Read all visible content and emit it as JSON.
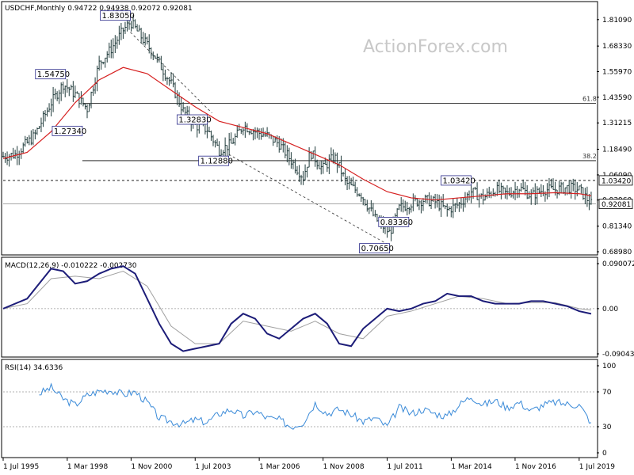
{
  "chart_title": "USDCHF,Monthly  0.94722 0.94938 0.92072 0.92081",
  "watermark": "ActionForex.com",
  "chart_data": [
    {
      "type": "ohlc",
      "panel": "price",
      "symbol": "USDCHF",
      "timeframe": "Monthly",
      "last_ohlc": {
        "open": 0.94722,
        "high": 0.94938,
        "low": 0.92072,
        "close": 0.92081
      },
      "ylim": [
        0.6898,
        1.8598
      ],
      "y_ticks": [
        "1.81090",
        "1.68330",
        "1.55970",
        "1.43590",
        "1.31215",
        "1.18490",
        "1.06090",
        "0.93960",
        "0.81340",
        "0.68980"
      ],
      "x_ticks": [
        "1 Jul 1995",
        "1 Mar 1998",
        "1 Nov 2000",
        "1 Jul 2003",
        "1 Mar 2006",
        "1 Nov 2008",
        "1 Jul 2011",
        "1 Mar 2014",
        "1 Nov 2016",
        "1 Jul 2019"
      ],
      "x_range": [
        1995.5,
        2020.2
      ],
      "swing_points": [
        {
          "label": "1.83050",
          "x": 2000.8,
          "y": 1.8305
        },
        {
          "label": "1.54750",
          "x": 1998.1,
          "y": 1.5475
        },
        {
          "label": "1.27340",
          "x": 1998.8,
          "y": 1.2734
        },
        {
          "label": "1.32830",
          "x": 2004.0,
          "y": 1.3283
        },
        {
          "label": "1.12880",
          "x": 2004.9,
          "y": 1.1288
        },
        {
          "label": "0.70650",
          "x": 2011.6,
          "y": 0.7065
        },
        {
          "label": "0.83360",
          "x": 2012.4,
          "y": 0.8336
        },
        {
          "label": "1.03420",
          "x": 2015.0,
          "y": 1.0342
        }
      ],
      "fib_levels": [
        {
          "label": "61.8",
          "value": 1.4063
        },
        {
          "label": "38.2",
          "value": 1.1297
        }
      ],
      "price_tags": [
        {
          "label": "1.03420",
          "value": 1.0342,
          "color": "#000000"
        },
        {
          "label": "0.92081",
          "value": 0.92081,
          "color": "#000000"
        }
      ],
      "moving_average": [
        [
          1995.5,
          1.14
        ],
        [
          1996.5,
          1.17
        ],
        [
          1997.5,
          1.27
        ],
        [
          1998.5,
          1.41
        ],
        [
          1999.5,
          1.52
        ],
        [
          2000.5,
          1.58
        ],
        [
          2001.5,
          1.55
        ],
        [
          2002.5,
          1.47
        ],
        [
          2003.5,
          1.39
        ],
        [
          2004.5,
          1.32
        ],
        [
          2005.5,
          1.29
        ],
        [
          2006.5,
          1.26
        ],
        [
          2007.5,
          1.21
        ],
        [
          2008.5,
          1.16
        ],
        [
          2009.5,
          1.11
        ],
        [
          2010.5,
          1.04
        ],
        [
          2011.5,
          0.98
        ],
        [
          2012.5,
          0.95
        ],
        [
          2013.5,
          0.94
        ],
        [
          2014.5,
          0.95
        ],
        [
          2015.5,
          0.96
        ],
        [
          2016.5,
          0.97
        ],
        [
          2017.5,
          0.97
        ],
        [
          2018.5,
          0.975
        ],
        [
          2019.5,
          0.97
        ],
        [
          2020.0,
          0.96
        ]
      ],
      "price_path": [
        [
          1995.5,
          1.15
        ],
        [
          1996.0,
          1.16
        ],
        [
          1996.8,
          1.25
        ],
        [
          1997.5,
          1.41
        ],
        [
          1998.0,
          1.5
        ],
        [
          1998.5,
          1.45
        ],
        [
          1999.0,
          1.38
        ],
        [
          1999.5,
          1.6
        ],
        [
          2000.0,
          1.67
        ],
        [
          2000.5,
          1.76
        ],
        [
          2000.8,
          1.8
        ],
        [
          2001.3,
          1.72
        ],
        [
          2001.8,
          1.64
        ],
        [
          2002.5,
          1.5
        ],
        [
          2003.0,
          1.37
        ],
        [
          2003.5,
          1.3
        ],
        [
          2004.0,
          1.28
        ],
        [
          2004.5,
          1.18
        ],
        [
          2005.0,
          1.21
        ],
        [
          2005.5,
          1.3
        ],
        [
          2006.0,
          1.27
        ],
        [
          2006.5,
          1.25
        ],
        [
          2007.0,
          1.21
        ],
        [
          2007.5,
          1.13
        ],
        [
          2008.0,
          1.05
        ],
        [
          2008.3,
          1.17
        ],
        [
          2008.8,
          1.09
        ],
        [
          2009.3,
          1.15
        ],
        [
          2009.8,
          1.02
        ],
        [
          2010.4,
          0.97
        ],
        [
          2011.0,
          0.85
        ],
        [
          2011.6,
          0.78
        ],
        [
          2012.0,
          0.9
        ],
        [
          2012.6,
          0.93
        ],
        [
          2013.0,
          0.94
        ],
        [
          2013.5,
          0.93
        ],
        [
          2014.0,
          0.89
        ],
        [
          2014.5,
          0.92
        ],
        [
          2015.0,
          0.98
        ],
        [
          2015.5,
          0.95
        ],
        [
          2016.0,
          0.99
        ],
        [
          2016.5,
          0.97
        ],
        [
          2017.0,
          1.0
        ],
        [
          2017.5,
          0.96
        ],
        [
          2018.0,
          0.99
        ],
        [
          2018.5,
          0.99
        ],
        [
          2019.0,
          1.0
        ],
        [
          2019.5,
          0.99
        ],
        [
          2020.0,
          0.9208
        ]
      ]
    },
    {
      "type": "line",
      "panel": "macd",
      "name": "MACD(12,26,9) -0.010222 -0.002730",
      "ylim": [
        -0.090435,
        0.090072
      ],
      "y_ticks": [
        "0.090072",
        "0.00",
        "-0.090435"
      ],
      "macd": [
        [
          1995.5,
          0.0
        ],
        [
          1996.5,
          0.02
        ],
        [
          1997.0,
          0.05
        ],
        [
          1997.5,
          0.08
        ],
        [
          1998.0,
          0.075
        ],
        [
          1998.5,
          0.05
        ],
        [
          1999.0,
          0.055
        ],
        [
          1999.5,
          0.07
        ],
        [
          2000.0,
          0.08
        ],
        [
          2000.5,
          0.085
        ],
        [
          2001.0,
          0.07
        ],
        [
          2001.5,
          0.02
        ],
        [
          2002.0,
          -0.03
        ],
        [
          2002.5,
          -0.07
        ],
        [
          2003.0,
          -0.085
        ],
        [
          2003.5,
          -0.08
        ],
        [
          2004.0,
          -0.075
        ],
        [
          2004.5,
          -0.07
        ],
        [
          2005.0,
          -0.03
        ],
        [
          2005.5,
          -0.01
        ],
        [
          2006.0,
          -0.02
        ],
        [
          2006.5,
          -0.05
        ],
        [
          2007.0,
          -0.06
        ],
        [
          2007.5,
          -0.04
        ],
        [
          2008.0,
          -0.02
        ],
        [
          2008.5,
          -0.01
        ],
        [
          2009.0,
          -0.03
        ],
        [
          2009.5,
          -0.07
        ],
        [
          2010.0,
          -0.075
        ],
        [
          2010.5,
          -0.04
        ],
        [
          2011.0,
          -0.02
        ],
        [
          2011.5,
          0.0
        ],
        [
          2012.0,
          -0.005
        ],
        [
          2012.5,
          0.0
        ],
        [
          2013.0,
          0.01
        ],
        [
          2013.5,
          0.015
        ],
        [
          2014.0,
          0.03
        ],
        [
          2014.5,
          0.025
        ],
        [
          2015.0,
          0.025
        ],
        [
          2015.5,
          0.015
        ],
        [
          2016.0,
          0.01
        ],
        [
          2016.5,
          0.01
        ],
        [
          2017.0,
          0.01
        ],
        [
          2017.5,
          0.015
        ],
        [
          2018.0,
          0.015
        ],
        [
          2018.5,
          0.01
        ],
        [
          2019.0,
          0.005
        ],
        [
          2019.5,
          -0.005
        ],
        [
          2020.0,
          -0.010222
        ]
      ],
      "signal": [
        [
          1995.5,
          0.0
        ],
        [
          1996.5,
          0.01
        ],
        [
          1997.5,
          0.06
        ],
        [
          1998.5,
          0.065
        ],
        [
          1999.5,
          0.06
        ],
        [
          2000.5,
          0.075
        ],
        [
          2001.5,
          0.045
        ],
        [
          2002.5,
          -0.035
        ],
        [
          2003.5,
          -0.07
        ],
        [
          2004.5,
          -0.07
        ],
        [
          2005.5,
          -0.025
        ],
        [
          2006.5,
          -0.035
        ],
        [
          2007.5,
          -0.045
        ],
        [
          2008.5,
          -0.025
        ],
        [
          2009.5,
          -0.05
        ],
        [
          2010.5,
          -0.06
        ],
        [
          2011.5,
          -0.015
        ],
        [
          2012.5,
          -0.005
        ],
        [
          2013.5,
          0.01
        ],
        [
          2014.5,
          0.025
        ],
        [
          2015.5,
          0.02
        ],
        [
          2016.5,
          0.01
        ],
        [
          2017.5,
          0.012
        ],
        [
          2018.5,
          0.012
        ],
        [
          2019.5,
          0.0
        ],
        [
          2020.0,
          -0.00273
        ]
      ]
    },
    {
      "type": "line",
      "panel": "rsi",
      "name": "RSI(14) 34.6336",
      "ylim": [
        0,
        100
      ],
      "y_ticks": [
        "100",
        "70",
        "30",
        "0"
      ],
      "levels": [
        70,
        30
      ],
      "values": [
        [
          1997.0,
          68
        ],
        [
          1997.5,
          75
        ],
        [
          1998.0,
          62
        ],
        [
          1998.5,
          55
        ],
        [
          1999.0,
          66
        ],
        [
          1999.5,
          71
        ],
        [
          2000.0,
          72
        ],
        [
          2000.5,
          67
        ],
        [
          2001.0,
          70
        ],
        [
          2001.5,
          58
        ],
        [
          2002.0,
          40
        ],
        [
          2002.5,
          36
        ],
        [
          2003.0,
          33
        ],
        [
          2003.5,
          38
        ],
        [
          2004.0,
          35
        ],
        [
          2004.5,
          45
        ],
        [
          2005.0,
          50
        ],
        [
          2005.5,
          42
        ],
        [
          2006.0,
          48
        ],
        [
          2006.5,
          40
        ],
        [
          2007.0,
          38
        ],
        [
          2007.5,
          30
        ],
        [
          2008.0,
          35
        ],
        [
          2008.5,
          57
        ],
        [
          2009.0,
          45
        ],
        [
          2009.5,
          50
        ],
        [
          2010.0,
          44
        ],
        [
          2010.5,
          36
        ],
        [
          2011.0,
          40
        ],
        [
          2011.5,
          30
        ],
        [
          2012.0,
          52
        ],
        [
          2012.5,
          45
        ],
        [
          2013.0,
          50
        ],
        [
          2013.5,
          45
        ],
        [
          2014.0,
          42
        ],
        [
          2014.5,
          55
        ],
        [
          2015.0,
          65
        ],
        [
          2015.5,
          55
        ],
        [
          2016.0,
          60
        ],
        [
          2016.5,
          52
        ],
        [
          2017.0,
          58
        ],
        [
          2017.5,
          48
        ],
        [
          2018.0,
          55
        ],
        [
          2018.5,
          58
        ],
        [
          2019.0,
          56
        ],
        [
          2019.5,
          55
        ],
        [
          2020.0,
          34.6336
        ]
      ]
    }
  ]
}
